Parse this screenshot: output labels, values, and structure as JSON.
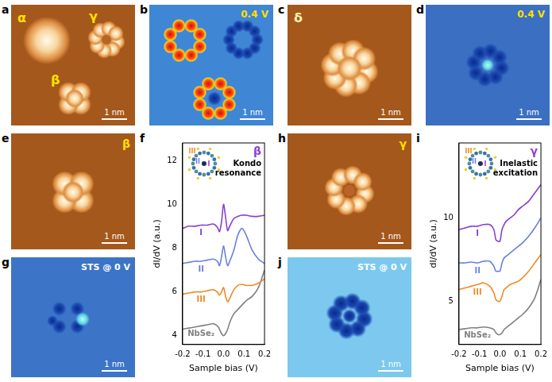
{
  "panels": [
    {
      "panel": "a",
      "labels": [
        "α",
        "γ",
        "β"
      ],
      "scale_bar": "1 nm"
    },
    {
      "panel": "b",
      "labels": [
        "0.4 V"
      ],
      "scale_bar": "1 nm"
    },
    {
      "panel": "c",
      "labels": [
        "δ"
      ],
      "scale_bar": "1 nm"
    },
    {
      "panel": "d",
      "labels": [
        "0.4 V"
      ],
      "scale_bar": "1 nm"
    },
    {
      "panel": "e",
      "labels": [
        "β"
      ],
      "scale_bar": "1 nm"
    },
    {
      "panel": "g",
      "labels": [
        "STS @ 0 V"
      ],
      "scale_bar": "1 nm"
    },
    {
      "panel": "h",
      "labels": [
        "γ"
      ],
      "scale_bar": "1 nm"
    },
    {
      "panel": "j",
      "labels": [
        "STS @ 0 V"
      ],
      "scale_bar": "1 nm"
    }
  ],
  "chart_data": [
    {
      "panel": "f",
      "type": "line",
      "x_label": "Sample bias (V)",
      "y_label": "dI/dV (a.u.)",
      "annotations": [
        "β",
        "Kondo resonance"
      ],
      "x": [
        -0.2,
        -0.17,
        -0.14,
        -0.11,
        -0.08,
        -0.05,
        -0.03,
        -0.02,
        -0.01,
        0,
        0.01,
        0.02,
        0.03,
        0.05,
        0.07,
        0.09,
        0.11,
        0.14,
        0.17,
        0.2
      ],
      "series": [
        {
          "name": "I",
          "color": "#8b3fcf",
          "values": [
            8.9,
            9.0,
            9.0,
            9.05,
            9.05,
            9.1,
            8.95,
            8.75,
            9.2,
            10.0,
            9.4,
            8.8,
            9.0,
            9.35,
            9.45,
            9.5,
            9.5,
            9.45,
            9.45,
            9.5
          ]
        },
        {
          "name": "II",
          "color": "#6b7fe0",
          "values": [
            7.3,
            7.35,
            7.4,
            7.4,
            7.45,
            7.5,
            7.4,
            7.2,
            7.6,
            8.1,
            7.6,
            7.2,
            7.4,
            7.9,
            8.6,
            8.9,
            8.6,
            7.9,
            7.5,
            7.3
          ]
        },
        {
          "name": "III",
          "color": "#f08a24",
          "values": [
            5.9,
            5.95,
            6.0,
            6.0,
            6.05,
            6.1,
            6.0,
            5.85,
            6.0,
            6.2,
            5.8,
            5.55,
            5.7,
            6.1,
            6.3,
            6.35,
            6.3,
            6.3,
            6.4,
            6.6
          ]
        },
        {
          "name": "NbSe₂",
          "color": "#808080",
          "values": [
            4.3,
            4.35,
            4.4,
            4.45,
            4.5,
            4.55,
            4.45,
            4.3,
            4.1,
            4.0,
            4.1,
            4.3,
            4.6,
            5.0,
            5.2,
            5.4,
            5.6,
            5.8,
            6.2,
            7.0
          ]
        }
      ],
      "xlim": [
        -0.2,
        0.2
      ],
      "xticks": [
        -0.2,
        -0.1,
        {
          "value": 0,
          "label": "0.0"
        },
        0.1,
        0.2
      ],
      "ylim": [
        3.6,
        12.8
      ],
      "yticks": [
        4,
        6,
        8,
        10,
        12
      ],
      "grid": false
    },
    {
      "panel": "i",
      "type": "line",
      "x_label": "Sample bias (V)",
      "y_label": "dI/dV (a.u.)",
      "annotations": [
        "γ",
        "Inelastic excitation"
      ],
      "x": [
        -0.2,
        -0.17,
        -0.14,
        -0.11,
        -0.08,
        -0.05,
        -0.03,
        -0.02,
        -0.01,
        0,
        0.01,
        0.02,
        0.03,
        0.05,
        0.07,
        0.09,
        0.11,
        0.14,
        0.17,
        0.2
      ],
      "series": [
        {
          "name": "I",
          "color": "#8b3fcf",
          "values": [
            9.3,
            9.4,
            9.5,
            9.5,
            9.6,
            9.6,
            9.3,
            8.7,
            8.6,
            8.6,
            9.3,
            9.6,
            9.8,
            10.0,
            10.2,
            10.5,
            10.7,
            11.0,
            11.5,
            12.0
          ]
        },
        {
          "name": "II",
          "color": "#6b7fe0",
          "values": [
            7.3,
            7.3,
            7.35,
            7.3,
            7.4,
            7.4,
            7.1,
            6.8,
            6.8,
            6.8,
            7.3,
            7.6,
            7.7,
            7.9,
            8.1,
            8.3,
            8.5,
            8.9,
            9.4,
            10.0
          ]
        },
        {
          "name": "III",
          "color": "#f08a24",
          "values": [
            5.7,
            5.8,
            5.9,
            6.0,
            6.1,
            5.9,
            5.5,
            5.1,
            5.0,
            5.0,
            5.3,
            5.7,
            5.8,
            6.0,
            6.1,
            6.2,
            6.4,
            6.8,
            7.3,
            7.8
          ]
        },
        {
          "name": "NbSe₂",
          "color": "#808080",
          "values": [
            3.3,
            3.35,
            3.4,
            3.4,
            3.45,
            3.4,
            3.3,
            3.1,
            3.0,
            3.0,
            3.1,
            3.3,
            3.4,
            3.6,
            3.8,
            4.0,
            4.2,
            4.6,
            5.2,
            6.3
          ]
        }
      ],
      "xlim": [
        -0.2,
        0.2
      ],
      "xticks": [
        -0.2,
        -0.1,
        {
          "value": 0,
          "label": "0.0"
        },
        0.1,
        0.2
      ],
      "ylim": [
        2.4,
        14.5
      ],
      "yticks": [
        5,
        10
      ],
      "grid": false
    }
  ]
}
